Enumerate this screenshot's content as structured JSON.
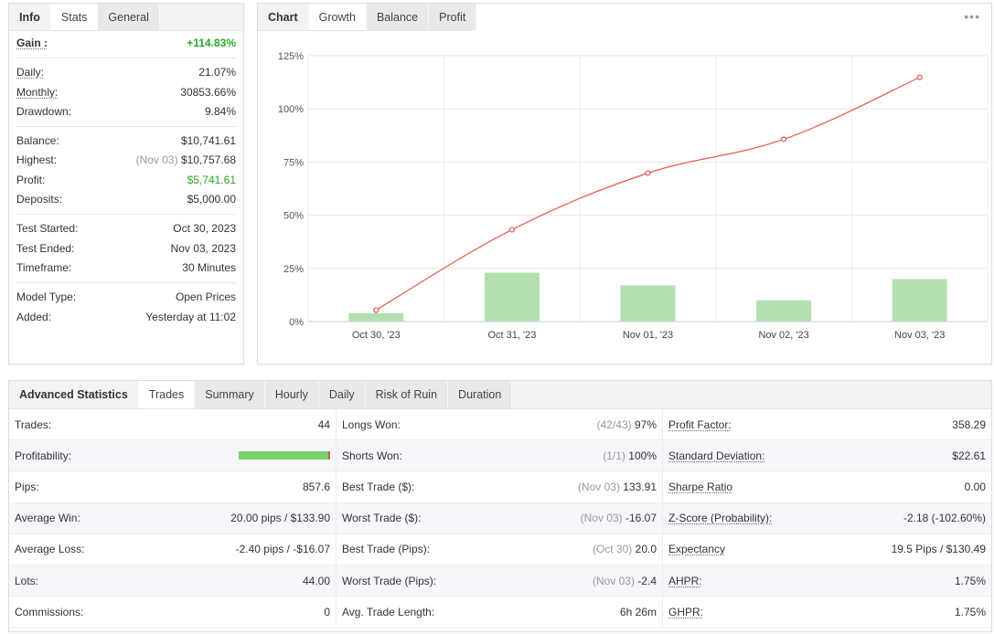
{
  "stats_tabs": [
    "Info",
    "Stats",
    "General"
  ],
  "stats": {
    "gain": {
      "label": "Gain :",
      "value": "+114.83%"
    },
    "group1": [
      {
        "label": "Daily:",
        "value": "21.07%",
        "u": true
      },
      {
        "label": "Monthly:",
        "value": "30853.66%",
        "u": true
      },
      {
        "label": "Drawdown:",
        "value": "9.84%",
        "u": false
      }
    ],
    "group2": [
      {
        "label": "Balance:",
        "value": "$10,741.61",
        "note": ""
      },
      {
        "label": "Highest:",
        "value": "$10,757.68",
        "note": "(Nov 03)"
      },
      {
        "label": "Profit:",
        "value": "$5,741.61",
        "note": ""
      },
      {
        "label": "Deposits:",
        "value": "$5,000.00",
        "note": ""
      }
    ],
    "group3": [
      {
        "label": "Test Started:",
        "value": "Oct 30, 2023"
      },
      {
        "label": "Test Ended:",
        "value": "Nov 03, 2023"
      },
      {
        "label": "Timeframe:",
        "value": "30 Minutes"
      }
    ],
    "group4": [
      {
        "label": "Model Type:",
        "value": "Open Prices"
      },
      {
        "label": "Added:",
        "value": "Yesterday at 11:02"
      }
    ]
  },
  "chart_tabs": [
    "Chart",
    "Growth",
    "Balance",
    "Profit"
  ],
  "more_icon": "•••",
  "chart_data": {
    "type": "bar+line",
    "categories": [
      "Oct 30, '23",
      "Oct 31, '23",
      "Nov 01, '23",
      "Nov 02, '23",
      "Nov 03, '23"
    ],
    "series": [
      {
        "kind": "bar",
        "values": [
          4,
          23,
          17,
          10,
          20
        ],
        "color": "#b3e0b0"
      },
      {
        "kind": "line",
        "values": [
          5.4,
          43.2,
          69.8,
          85.7,
          114.8
        ],
        "color": "#e35a4f"
      }
    ],
    "yticks": [
      "125%",
      "100%",
      "75%",
      "50%",
      "25%",
      "0%"
    ],
    "ylim": [
      0,
      125
    ],
    "grid": true
  },
  "adv_tabs": [
    "Advanced Statistics",
    "Trades",
    "Summary",
    "Hourly",
    "Daily",
    "Risk of Ruin",
    "Duration"
  ],
  "adv": {
    "col1": [
      {
        "label": "Trades:",
        "value": "44"
      },
      {
        "label": "Profitability:",
        "value": "",
        "bar": 0.977
      },
      {
        "label": "Pips:",
        "value": "857.6"
      },
      {
        "label": "Average Win:",
        "value": "20.00 pips / $133.90"
      },
      {
        "label": "Average Loss:",
        "value": "-2.40 pips / -$16.07"
      },
      {
        "label": "Lots:",
        "value": "44.00"
      },
      {
        "label": "Commissions:",
        "value": "0"
      }
    ],
    "col2": [
      {
        "label": "Longs Won:",
        "note": "(42/43)",
        "value": "97%"
      },
      {
        "label": "Shorts Won:",
        "note": "(1/1)",
        "value": "100%"
      },
      {
        "label": "Best Trade ($):",
        "note": "(Nov 03)",
        "value": "133.91"
      },
      {
        "label": "Worst Trade ($):",
        "note": "(Nov 03)",
        "value": "-16.07"
      },
      {
        "label": "Best Trade (Pips):",
        "note": "(Oct 30)",
        "value": "20.0"
      },
      {
        "label": "Worst Trade (Pips):",
        "note": "(Nov 03)",
        "value": "-2.4"
      },
      {
        "label": "Avg. Trade Length:",
        "note": "",
        "value": "6h 26m"
      }
    ],
    "col3": [
      {
        "label": "Profit Factor:",
        "value": "358.29"
      },
      {
        "label": "Standard Deviation:",
        "value": "$22.61"
      },
      {
        "label": "Sharpe Ratio",
        "value": "0.00"
      },
      {
        "label": "Z-Score (Probability):",
        "value": "-2.18 (-102.60%)"
      },
      {
        "label": "Expectancy",
        "value": "19.5 Pips / $130.49"
      },
      {
        "label": "AHPR:",
        "value": "1.75%"
      },
      {
        "label": "GHPR:",
        "value": "1.75%"
      }
    ]
  },
  "colors": {
    "positive": "#2aa52a",
    "bar": "#b3e0b0",
    "line": "#e35a4f"
  }
}
